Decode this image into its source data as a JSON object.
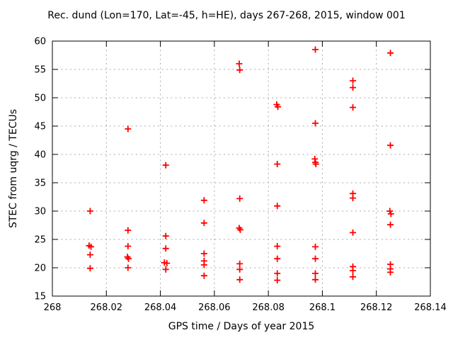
{
  "chart_data": {
    "type": "scatter",
    "title": "Rec. dund (Lon=170, Lat=-45, h=HE), days 267-268, 2015, window 001",
    "xlabel": "GPS time / Days of year 2015",
    "ylabel": "STEC from uqrg / TECUs",
    "xlim": [
      268,
      268.14
    ],
    "ylim": [
      15,
      60
    ],
    "grid": true,
    "legend": "none",
    "marker": {
      "shape": "plus",
      "color": "#ff0000",
      "size": 9
    },
    "xticks": [
      {
        "value": 268,
        "label": "268"
      },
      {
        "value": 268.02,
        "label": "268.02"
      },
      {
        "value": 268.04,
        "label": "268.04"
      },
      {
        "value": 268.06,
        "label": "268.06"
      },
      {
        "value": 268.08,
        "label": "268.08"
      },
      {
        "value": 268.1,
        "label": "268.1"
      },
      {
        "value": 268.12,
        "label": "268.12"
      },
      {
        "value": 268.14,
        "label": "268.14"
      }
    ],
    "yticks": [
      {
        "value": 15,
        "label": "15"
      },
      {
        "value": 20,
        "label": "20"
      },
      {
        "value": 25,
        "label": "25"
      },
      {
        "value": 30,
        "label": "30"
      },
      {
        "value": 35,
        "label": "35"
      },
      {
        "value": 40,
        "label": "40"
      },
      {
        "value": 45,
        "label": "45"
      },
      {
        "value": 50,
        "label": "50"
      },
      {
        "value": 55,
        "label": "55"
      },
      {
        "value": 60,
        "label": "60"
      }
    ],
    "points": [
      [
        268.014,
        30.0
      ],
      [
        268.0136,
        23.9
      ],
      [
        268.0143,
        23.7
      ],
      [
        268.014,
        22.3
      ],
      [
        268.014,
        19.9
      ],
      [
        268.028,
        44.5
      ],
      [
        268.028,
        26.6
      ],
      [
        268.028,
        23.8
      ],
      [
        268.0278,
        21.9
      ],
      [
        268.0282,
        21.6
      ],
      [
        268.028,
        20.0
      ],
      [
        268.042,
        38.1
      ],
      [
        268.042,
        25.6
      ],
      [
        268.042,
        23.4
      ],
      [
        268.0415,
        20.9
      ],
      [
        268.0424,
        20.8
      ],
      [
        268.042,
        19.7
      ],
      [
        268.0562,
        31.9
      ],
      [
        268.0562,
        27.9
      ],
      [
        268.0562,
        22.5
      ],
      [
        268.0562,
        21.2
      ],
      [
        268.0562,
        20.5
      ],
      [
        268.0562,
        18.6
      ],
      [
        268.0692,
        56.0
      ],
      [
        268.0694,
        54.9
      ],
      [
        268.0694,
        32.2
      ],
      [
        268.0692,
        27.0
      ],
      [
        268.0696,
        26.7
      ],
      [
        268.0694,
        20.7
      ],
      [
        268.0694,
        19.7
      ],
      [
        268.0694,
        17.9
      ],
      [
        268.0831,
        48.8
      ],
      [
        268.0835,
        48.4
      ],
      [
        268.0833,
        38.3
      ],
      [
        268.0833,
        30.9
      ],
      [
        268.0833,
        23.8
      ],
      [
        268.0833,
        21.6
      ],
      [
        268.0833,
        19.0
      ],
      [
        268.0833,
        17.8
      ],
      [
        268.0974,
        58.5
      ],
      [
        268.0974,
        45.5
      ],
      [
        268.0972,
        39.2
      ],
      [
        268.0974,
        38.6
      ],
      [
        268.0976,
        38.3
      ],
      [
        268.0974,
        23.7
      ],
      [
        268.0974,
        21.6
      ],
      [
        268.0974,
        19.0
      ],
      [
        268.0974,
        17.9
      ],
      [
        268.1113,
        53.0
      ],
      [
        268.1113,
        51.8
      ],
      [
        268.1113,
        48.3
      ],
      [
        268.1113,
        33.1
      ],
      [
        268.1113,
        32.3
      ],
      [
        268.1113,
        26.2
      ],
      [
        268.1113,
        20.2
      ],
      [
        268.1113,
        19.5
      ],
      [
        268.1113,
        18.4
      ],
      [
        268.1252,
        57.9
      ],
      [
        268.1252,
        41.6
      ],
      [
        268.125,
        30.0
      ],
      [
        268.1254,
        29.5
      ],
      [
        268.1252,
        27.6
      ],
      [
        268.1252,
        20.6
      ],
      [
        268.1252,
        19.8
      ],
      [
        268.1252,
        19.2
      ]
    ]
  }
}
